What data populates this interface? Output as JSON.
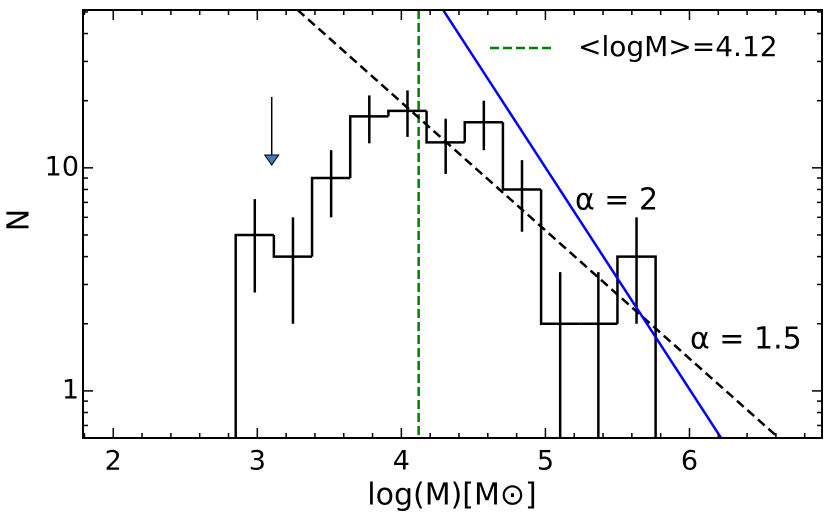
{
  "chart_data": {
    "type": "histogram",
    "xlabel": "log(M)[M⊙]",
    "ylabel": "N",
    "xlim": [
      1.79,
      6.92
    ],
    "ylim": [
      0.615,
      51
    ],
    "yscale": "log",
    "xticks": [
      2,
      3,
      4,
      5,
      6
    ],
    "yticks": [
      1,
      10
    ],
    "bins": [
      2.85,
      3.115,
      3.38,
      3.645,
      3.91,
      4.175,
      4.44,
      4.705,
      4.97,
      5.235,
      5.5,
      5.765
    ],
    "values": [
      5,
      4,
      9,
      17,
      18,
      13,
      16,
      8,
      2,
      2,
      4
    ],
    "errors": [
      2.24,
      2,
      3,
      4.12,
      4.24,
      3.61,
      4,
      2.83,
      1.41,
      1.41,
      2
    ],
    "color": "#000000",
    "vline": {
      "name": "<logM>=4.12",
      "x": 4.12,
      "color": "#008000"
    },
    "lines": [
      {
        "label": "α = 1.5",
        "color": "#000000",
        "dashed": true,
        "x": [
          3.28,
          6.62
        ],
        "y": [
          51,
          0.615
        ]
      },
      {
        "label": "α = 2",
        "color": "#0000ff",
        "dashed": false,
        "x": [
          4.29,
          6.22
        ],
        "y": [
          51,
          0.615
        ]
      }
    ],
    "arrow": {
      "x": 3.1,
      "y": [
        20.8,
        10.3
      ],
      "color": "#3a7fc0"
    },
    "legend": "upper right"
  }
}
